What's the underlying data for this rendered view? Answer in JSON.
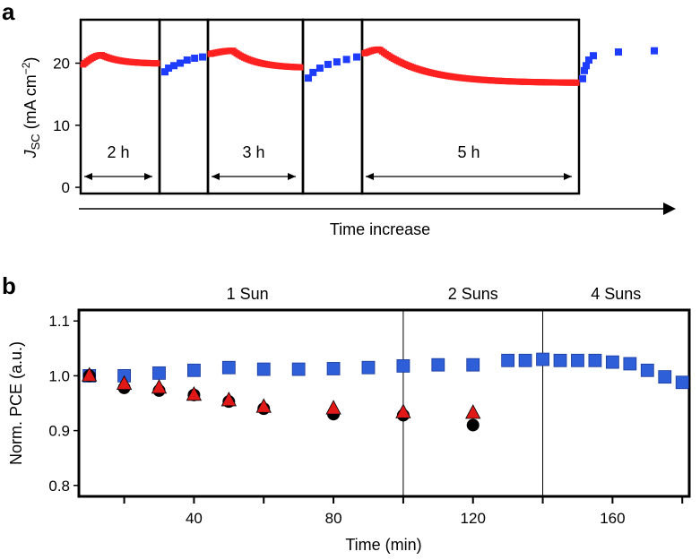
{
  "chart_data": [
    {
      "panel": "a",
      "type": "scatter",
      "title": "",
      "ylabel_main": "J",
      "ylabel_sub": "SC",
      "ylabel_unit": " (mA cm",
      "ylabel_exp": "−2",
      "ylabel_close": ")",
      "xlabel": "Time increase",
      "yticks": [
        0,
        10,
        20
      ],
      "ylim": [
        -1,
        27
      ],
      "intervals": [
        {
          "label": "2 h",
          "hours": 2
        },
        {
          "label": "3 h",
          "hours": 3
        },
        {
          "label": "5 h",
          "hours": 5
        }
      ],
      "colors": {
        "light": "#ff2020",
        "dark": "#1e3cff"
      },
      "light_segments": [
        {
          "start": 19.8,
          "peak": 21.3,
          "end": 19.9
        },
        {
          "start": 21.5,
          "peak": 22.0,
          "end": 19.2
        },
        {
          "start": 21.6,
          "peak": 22.2,
          "end": 16.8
        }
      ],
      "dark_segments": [
        {
          "values": [
            18.6,
            19.2,
            19.6,
            20.0,
            20.5,
            20.8,
            21.0
          ]
        },
        {
          "values": [
            17.6,
            18.5,
            19.2,
            19.8,
            20.2,
            20.6,
            21.0
          ]
        },
        {
          "values": [
            17.5,
            18.8,
            19.6,
            20.5,
            21.2,
            21.8,
            22.0
          ]
        }
      ]
    },
    {
      "panel": "b",
      "type": "scatter",
      "title": "",
      "xlabel": "Time (min)",
      "ylabel": "Norm. PCE (a.u.)",
      "xlim": [
        7,
        182
      ],
      "ylim": [
        0.78,
        1.12
      ],
      "xticks": [
        40,
        80,
        120,
        160
      ],
      "xticks_minor": [
        20,
        60,
        100,
        140,
        180
      ],
      "yticks": [
        0.8,
        0.9,
        1.0,
        1.1
      ],
      "ytick_labels": [
        "0.8",
        "0.9",
        "1.0",
        "1.1"
      ],
      "regions": [
        {
          "label": "1 Sun",
          "from": 7,
          "to": 100
        },
        {
          "label": "2 Suns",
          "from": 100,
          "to": 140
        },
        {
          "label": "4 Suns",
          "from": 140,
          "to": 182
        }
      ],
      "series": [
        {
          "marker": "square",
          "color": "#2f5fd8",
          "x": [
            10,
            20,
            30,
            40,
            50,
            60,
            70,
            80,
            90,
            100,
            110,
            120,
            130,
            135,
            140,
            145,
            150,
            155,
            160,
            165,
            170,
            175,
            180
          ],
          "y": [
            1.0,
            1.0,
            1.005,
            1.01,
            1.015,
            1.012,
            1.012,
            1.013,
            1.015,
            1.018,
            1.02,
            1.02,
            1.028,
            1.028,
            1.03,
            1.028,
            1.028,
            1.028,
            1.025,
            1.022,
            1.01,
            0.998,
            0.988
          ]
        },
        {
          "marker": "circle",
          "color": "#000000",
          "x": [
            10,
            20,
            30,
            40,
            50,
            60,
            80,
            100,
            120
          ],
          "y": [
            1.0,
            0.978,
            0.973,
            0.965,
            0.953,
            0.94,
            0.93,
            0.928,
            0.91
          ]
        },
        {
          "marker": "triangle",
          "color": "#e01818",
          "x": [
            10,
            20,
            30,
            40,
            50,
            60,
            80,
            100,
            120
          ],
          "y": [
            1.0,
            0.985,
            0.978,
            0.965,
            0.955,
            0.943,
            0.94,
            0.933,
            0.932
          ]
        }
      ]
    }
  ]
}
